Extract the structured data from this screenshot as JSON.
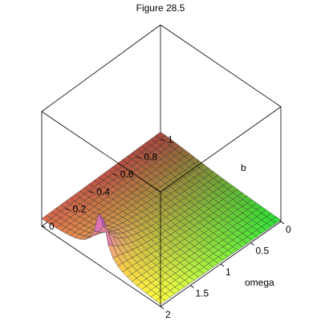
{
  "chart_data": {
    "type": "surface3d",
    "title": "Figure 28.5",
    "x_axis": {
      "label": "omega",
      "range": [
        0,
        2
      ],
      "ticks": [
        "0",
        "0.5",
        "1",
        "1.5",
        "2"
      ]
    },
    "y_axis": {
      "label": "b",
      "range": [
        0,
        1
      ],
      "ticks": [
        "0",
        "0.2",
        "0.4",
        "0.6",
        "0.8",
        "1"
      ]
    },
    "z_axis": {
      "label": "",
      "range": [
        0,
        15
      ]
    },
    "surface": {
      "description_of_function": "resonance amplitude peaking at omega=1 as b approaches 0",
      "grid": [
        25,
        25
      ],
      "peak": {
        "omega": 1,
        "b": 0,
        "value_approx": 15
      }
    },
    "colors": {
      "low": "#ffff40",
      "mid": "#ff7060",
      "high": "#c040ff",
      "right": "#40ff40",
      "mesh": "#222222"
    },
    "grid": false,
    "legend": "none"
  }
}
